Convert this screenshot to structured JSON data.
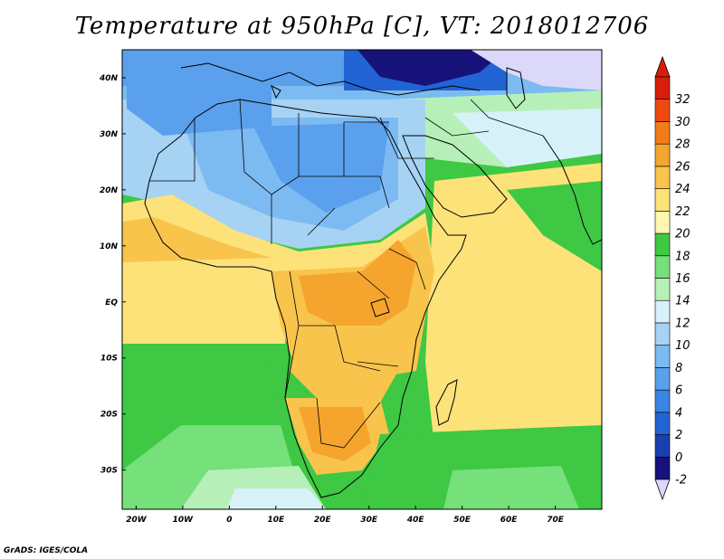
{
  "title": "Temperature at 950hPa [C], VT: 2018012706",
  "credit": "GrADS: IGES/COLA",
  "map": {
    "lon_range": [
      -23,
      80
    ],
    "lat_range": [
      -37,
      45
    ],
    "lon_ticks": [
      {
        "v": -20,
        "label": "20W"
      },
      {
        "v": -10,
        "label": "10W"
      },
      {
        "v": 0,
        "label": "0"
      },
      {
        "v": 10,
        "label": "10E"
      },
      {
        "v": 20,
        "label": "20E"
      },
      {
        "v": 30,
        "label": "30E"
      },
      {
        "v": 40,
        "label": "40E"
      },
      {
        "v": 50,
        "label": "50E"
      },
      {
        "v": 60,
        "label": "60E"
      },
      {
        "v": 70,
        "label": "70E"
      }
    ],
    "lat_ticks": [
      {
        "v": 40,
        "label": "40N"
      },
      {
        "v": 30,
        "label": "30N"
      },
      {
        "v": 20,
        "label": "20N"
      },
      {
        "v": 10,
        "label": "10N"
      },
      {
        "v": 0,
        "label": "EQ"
      },
      {
        "v": -10,
        "label": "10S"
      },
      {
        "v": -20,
        "label": "20S"
      },
      {
        "v": -30,
        "label": "30S"
      }
    ]
  },
  "colorbar": {
    "levels": [
      "-2",
      "0",
      "2",
      "4",
      "6",
      "8",
      "10",
      "12",
      "14",
      "16",
      "18",
      "20",
      "22",
      "24",
      "26",
      "28",
      "30",
      "32"
    ],
    "colors": [
      "#16127a",
      "#1a3fae",
      "#2264d4",
      "#3a84e4",
      "#5aa0ec",
      "#7cbaf2",
      "#a6d2f4",
      "#d6f2f8",
      "#b6f0b8",
      "#76e07a",
      "#3ec843",
      "#fff7b0",
      "#fde27a",
      "#f9c44c",
      "#f5a52d",
      "#f27b1a",
      "#ee4a10",
      "#d81e0a"
    ],
    "under_color": "#dcd8fa",
    "over_color": "#d81e0a"
  }
}
